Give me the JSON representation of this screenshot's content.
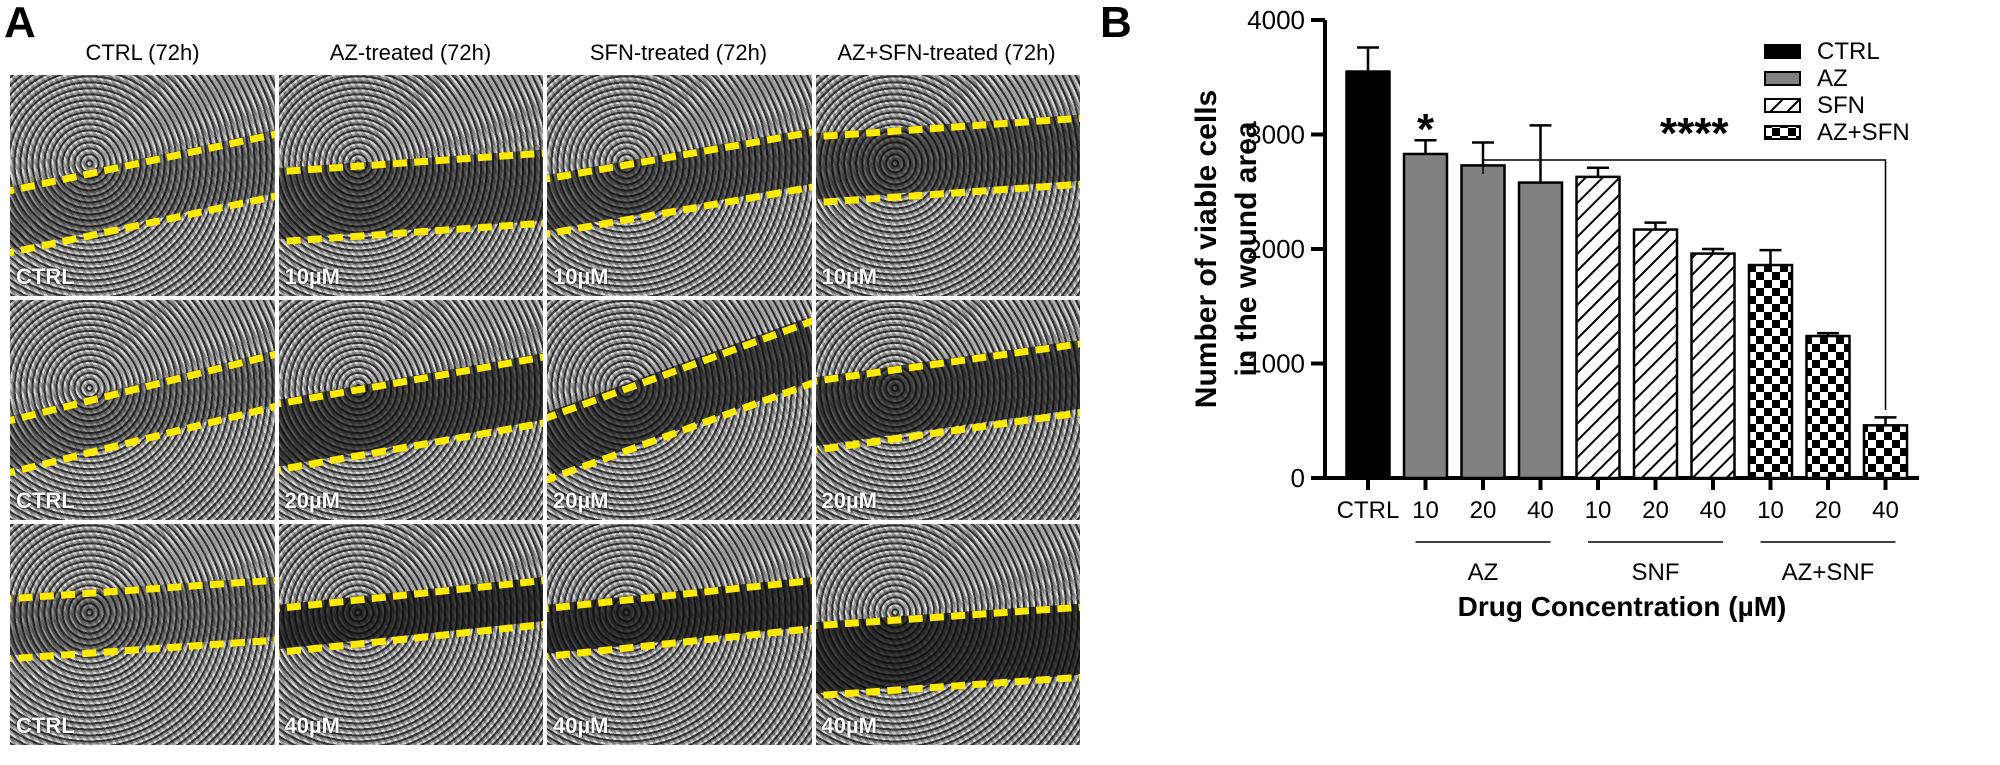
{
  "panelA": {
    "letter": "A",
    "column_titles": [
      "CTRL (72h)",
      "AZ-treated (72h)",
      "SFN-treated (72h)",
      "AZ+SFN-treated (72h)"
    ],
    "rows": [
      [
        "CTRL",
        "10µM",
        "10µM",
        "10µM"
      ],
      [
        "CTRL",
        "20µM",
        "20µM",
        "20µM"
      ],
      [
        "CTRL",
        "40µM",
        "40µM",
        "40µM"
      ]
    ],
    "wound_line_color": "#ffeb00"
  },
  "panelB": {
    "letter": "B"
  },
  "chart_data": {
    "type": "bar",
    "title": "",
    "xlabel": "Drug Concentration (µM)",
    "ylabel": "Number of viable cells in the wound area",
    "ylabel_lines": [
      "Number of viable cells",
      "in the wound area"
    ],
    "ylim": [
      0,
      4000
    ],
    "yticks": [
      0,
      1000,
      2000,
      3000,
      4000
    ],
    "grid": false,
    "legend_position": "top-right",
    "categories": [
      "CTRL",
      "10",
      "20",
      "40",
      "10",
      "20",
      "40",
      "10",
      "20",
      "40"
    ],
    "group_labels": [
      {
        "label": "AZ",
        "from": 1,
        "to": 3
      },
      {
        "label": "SNF",
        "from": 4,
        "to": 6
      },
      {
        "label": "AZ+SNF",
        "from": 7,
        "to": 9
      }
    ],
    "series": [
      {
        "name": "CTRL",
        "fill": "solid-black",
        "color": "#000000",
        "indices": [
          0
        ],
        "values": [
          3550
        ],
        "errors": [
          210
        ]
      },
      {
        "name": "AZ",
        "fill": "solid-gray",
        "color": "#808080",
        "indices": [
          1,
          2,
          3
        ],
        "values": [
          2830,
          2730,
          2580
        ],
        "errors": [
          120,
          200,
          500
        ]
      },
      {
        "name": "SFN",
        "fill": "diagonal-hatch",
        "color": "#000000",
        "indices": [
          4,
          5,
          6
        ],
        "values": [
          2630,
          2170,
          1960
        ],
        "errors": [
          80,
          60,
          40
        ]
      },
      {
        "name": "AZ+SFN",
        "fill": "checkerboard",
        "color": "#000000",
        "indices": [
          7,
          8,
          9
        ],
        "values": [
          1860,
          1240,
          460
        ],
        "errors": [
          130,
          25,
          70
        ]
      }
    ],
    "legend": [
      "CTRL",
      "AZ",
      "SFN",
      "AZ+SFN"
    ],
    "annotations": [
      {
        "text": "*",
        "above_index": 1
      },
      {
        "text": "****",
        "bracket_from_index": 2,
        "bracket_to_index": 9
      }
    ]
  }
}
